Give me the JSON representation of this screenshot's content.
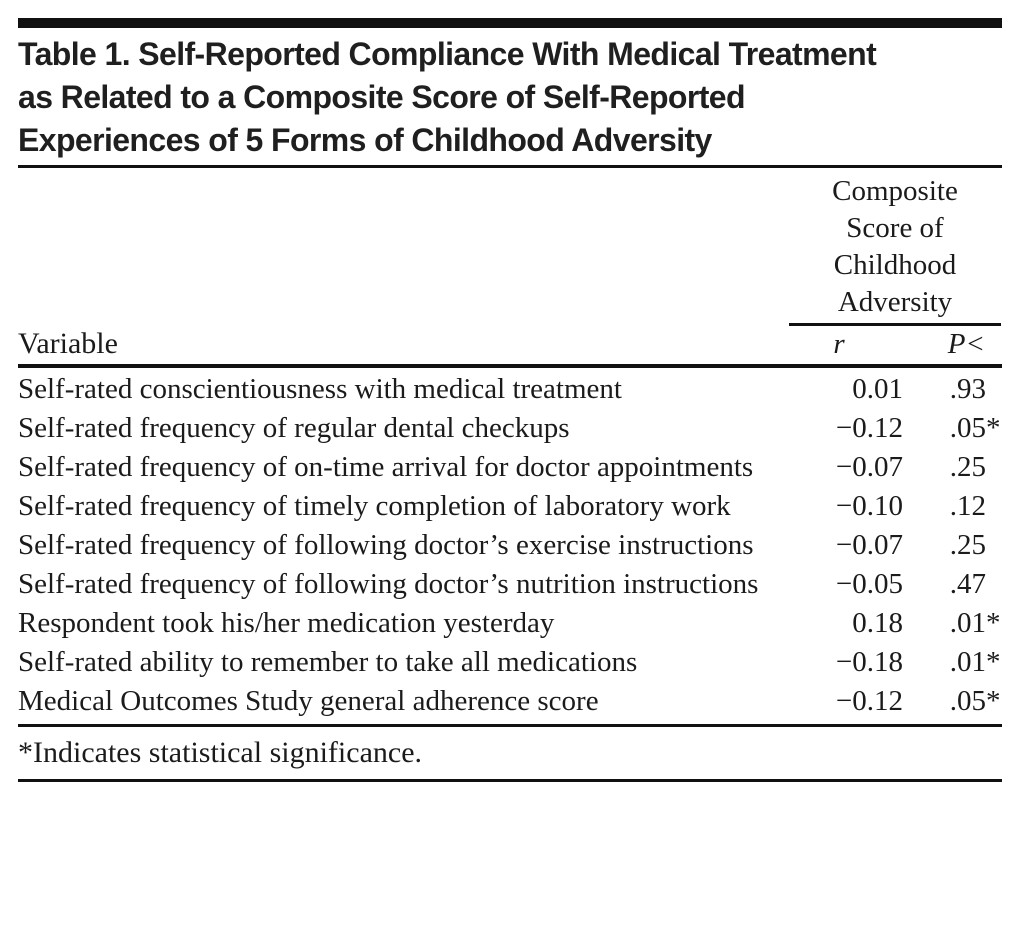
{
  "table": {
    "title": "Table 1. Self-Reported Compliance With Medical Treatment\nas Related to a Composite Score of Self-Reported\nExperiences of 5 Forms of Childhood Adversity",
    "column_group_label": "Composite Score of Childhood Adversity",
    "columns": {
      "variable": "Variable",
      "r": "r",
      "p": "P<"
    },
    "rows": [
      {
        "variable": "Self-rated conscientiousness with medical treatment",
        "r": "0.01",
        "p": ".93",
        "sig": ""
      },
      {
        "variable": "Self-rated frequency of regular dental checkups",
        "r": "−0.12",
        "p": ".05",
        "sig": "*"
      },
      {
        "variable": "Self-rated frequency of on-time arrival for doctor appointments",
        "r": "−0.07",
        "p": ".25",
        "sig": ""
      },
      {
        "variable": "Self-rated frequency of timely completion of laboratory work",
        "r": "−0.10",
        "p": ".12",
        "sig": ""
      },
      {
        "variable": "Self-rated frequency of following doctor’s exercise instructions",
        "r": "−0.07",
        "p": ".25",
        "sig": ""
      },
      {
        "variable": "Self-rated frequency of following doctor’s nutrition instructions",
        "r": "−0.05",
        "p": ".47",
        "sig": ""
      },
      {
        "variable": "Respondent took his/her medication yesterday",
        "r": "0.18",
        "p": ".01",
        "sig": "*"
      },
      {
        "variable": "Self-rated ability to remember to take all medications",
        "r": "−0.18",
        "p": ".01",
        "sig": "*"
      },
      {
        "variable": "Medical Outcomes Study general adherence score",
        "r": "−0.12",
        "p": ".05",
        "sig": "*"
      }
    ],
    "footnote": "*Indicates statistical significance."
  },
  "colors": {
    "text": "#1b1b1b",
    "rule": "#111111",
    "background": "#ffffff"
  }
}
